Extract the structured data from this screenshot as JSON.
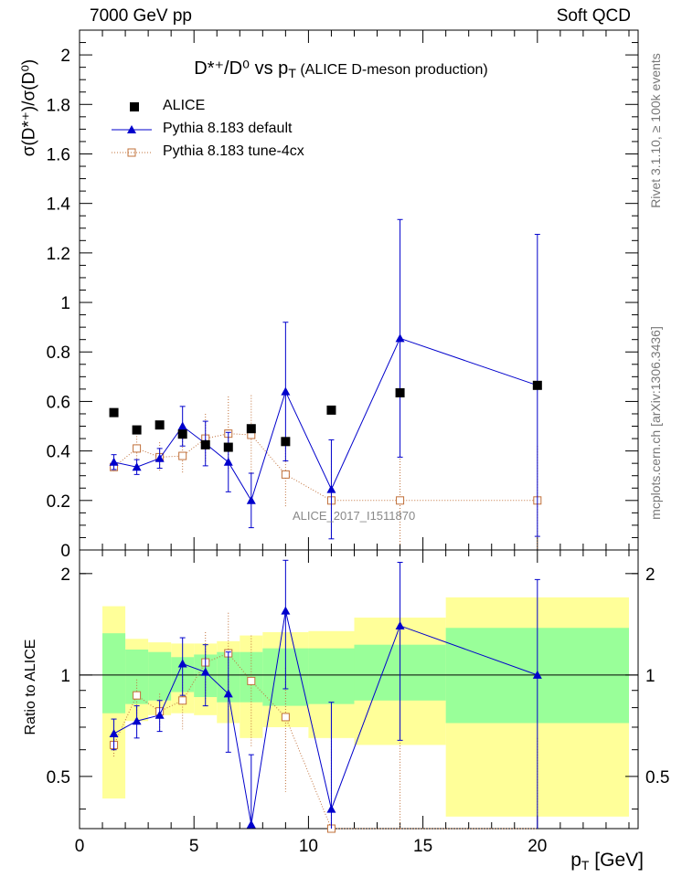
{
  "header": {
    "energy": "7000 GeV pp",
    "process": "Soft QCD"
  },
  "side_text": {
    "rivet": "Rivet 3.1.10, ≥ 100k events",
    "mcplots": "mcplots.cern.ch [arXiv:1306.3436]"
  },
  "chart_data": {
    "type": "scatter",
    "title_main": "D*⁺/D⁰ vs p",
    "title_sub": "T",
    "title_tail": " (ALICE D-meson production)",
    "ylabel_top": "σ(D*⁺)/σ(D⁰)",
    "ylabel_bottom": "Ratio to ALICE",
    "xlabel": "p",
    "xlabel_sub": "T",
    "xlabel_unit": " [GeV]",
    "reference_label": "ALICE_2017_I1511870",
    "xlim": [
      0,
      24.4
    ],
    "ylim_top": [
      0,
      2.1
    ],
    "ylim_bottom": [
      0.35,
      2.35
    ],
    "ratio_axis_scale": "log",
    "x_ticks": [
      "0",
      "5",
      "10",
      "15",
      "20"
    ],
    "y_ticks_top": [
      "0",
      "0.2",
      "0.4",
      "0.6",
      "0.8",
      "1",
      "1.2",
      "1.4",
      "1.6",
      "1.8",
      "2"
    ],
    "y_ticks_bottom": [
      "0.5",
      "1",
      "2"
    ],
    "bin_edges": [
      1,
      2,
      3,
      4,
      5,
      6,
      7,
      8,
      10,
      12,
      16,
      24
    ],
    "x": [
      1.5,
      2.5,
      3.5,
      4.5,
      5.5,
      6.5,
      7.5,
      9,
      11,
      14,
      20
    ],
    "series": [
      {
        "name": "ALICE",
        "color": "#000000",
        "marker": "filled-square",
        "values": [
          0.555,
          0.485,
          0.505,
          0.468,
          0.425,
          0.415,
          0.49,
          0.438,
          0.565,
          0.635,
          0.665
        ]
      },
      {
        "name": "Pythia 8.183 default",
        "color": "#0000cc",
        "marker": "filled-triangle",
        "line": "solid",
        "values": [
          0.355,
          0.335,
          0.37,
          0.5,
          0.43,
          0.355,
          0.2,
          0.64,
          0.245,
          0.855,
          0.665
        ],
        "errors": [
          0.03,
          0.03,
          0.04,
          0.08,
          0.09,
          0.12,
          0.11,
          0.28,
          0.2,
          0.48,
          0.61
        ],
        "ratio": [
          0.67,
          0.73,
          0.76,
          1.08,
          1.02,
          0.88,
          0.36,
          1.55,
          0.4,
          1.4,
          1.0
        ],
        "ratio_errors": [
          0.07,
          0.08,
          0.08,
          0.21,
          0.21,
          0.29,
          0.22,
          0.64,
          0.43,
          0.76,
          0.92
        ]
      },
      {
        "name": "Pythia 8.183 tune-4cx",
        "color": "#c0703a",
        "marker": "open-square",
        "line": "dotted",
        "values": [
          0.335,
          0.41,
          0.375,
          0.38,
          0.45,
          0.47,
          0.465,
          0.305,
          0.2,
          0.2,
          0.2
        ],
        "errors": [
          0.02,
          0.05,
          0.06,
          0.07,
          0.1,
          0.15,
          0.16,
          0.13,
          0.16,
          0.18,
          0.22
        ],
        "ratio": [
          0.62,
          0.87,
          0.78,
          0.84,
          1.09,
          1.16,
          0.96,
          0.75,
          0.35,
          0.33,
          0.3
        ],
        "ratio_errors": [
          0.05,
          0.1,
          0.1,
          0.15,
          0.25,
          0.37,
          0.35,
          0.3,
          0.3,
          0.3,
          0.35
        ]
      }
    ],
    "uncertainty_bands": {
      "stat": [
        [
          0.77,
          1.33
        ],
        [
          0.82,
          1.19
        ],
        [
          0.84,
          1.17
        ],
        [
          0.89,
          1.13
        ],
        [
          0.86,
          1.15
        ],
        [
          0.83,
          1.17
        ],
        [
          0.83,
          1.17
        ],
        [
          0.81,
          1.2
        ],
        [
          0.82,
          1.2
        ],
        [
          0.84,
          1.23
        ],
        [
          0.72,
          1.38
        ]
      ],
      "total": [
        [
          0.43,
          1.6
        ],
        [
          0.73,
          1.28
        ],
        [
          0.76,
          1.25
        ],
        [
          0.77,
          1.24
        ],
        [
          0.76,
          1.24
        ],
        [
          0.72,
          1.26
        ],
        [
          0.65,
          1.31
        ],
        [
          0.7,
          1.34
        ],
        [
          0.65,
          1.35
        ],
        [
          0.62,
          1.48
        ],
        [
          0.38,
          1.7
        ]
      ],
      "stat_color": "#99ff99",
      "total_color": "#ffff99"
    }
  }
}
